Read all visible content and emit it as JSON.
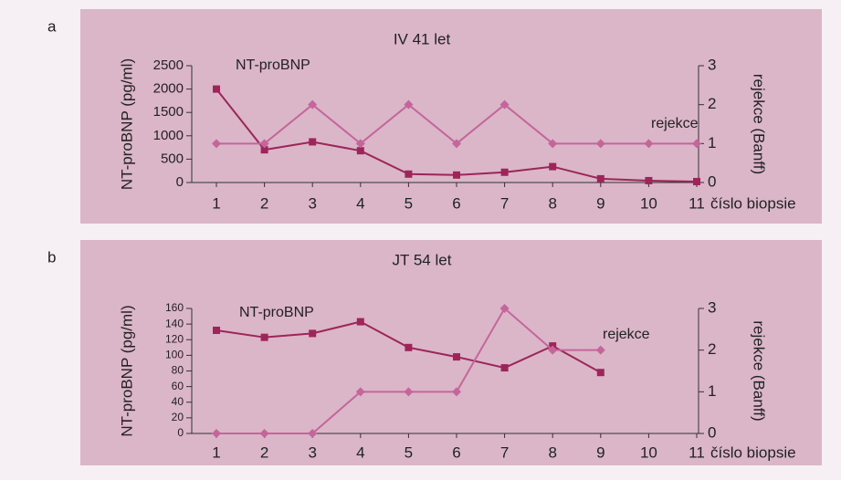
{
  "chart_data": [
    {
      "type": "line",
      "panel": "a",
      "title": "IV 41 let",
      "ylabel": "NT-proBNP (pg/ml)",
      "y2label": "rejekce (Banff)",
      "xlabel": "číslo biopsie",
      "categories": [
        "1",
        "2",
        "3",
        "4",
        "5",
        "6",
        "7",
        "8",
        "9",
        "10",
        "11"
      ],
      "series": [
        {
          "name": "NT-proBNP",
          "color": "#9c2559",
          "marker": "square",
          "values": [
            2000,
            700,
            870,
            680,
            180,
            160,
            220,
            340,
            80,
            40,
            20
          ]
        },
        {
          "name": "rejekce",
          "color": "#c4669a",
          "marker": "diamond",
          "axis": "y2",
          "values": [
            1,
            1,
            2,
            1,
            2,
            1,
            2,
            1,
            1,
            1,
            1
          ]
        }
      ],
      "ylim": [
        0,
        2500
      ],
      "yticks": [
        0,
        500,
        1000,
        1500,
        2000,
        2500
      ],
      "y2lim": [
        0,
        3
      ],
      "y2ticks": [
        0,
        1,
        2,
        3
      ]
    },
    {
      "type": "line",
      "panel": "b",
      "title": "JT 54 let",
      "ylabel": "NT-proBNP (pg/ml)",
      "y2label": "rejekce (Banff)",
      "xlabel": "číslo biopsie",
      "categories": [
        "1",
        "2",
        "3",
        "4",
        "5",
        "6",
        "7",
        "8",
        "9",
        "10",
        "11"
      ],
      "series": [
        {
          "name": "NT-proBNP",
          "color": "#9c2559",
          "marker": "square",
          "values": [
            132,
            123,
            128,
            143,
            110,
            98,
            84,
            112,
            78,
            null,
            null
          ]
        },
        {
          "name": "rejekce",
          "color": "#c4669a",
          "marker": "diamond",
          "axis": "y2",
          "values": [
            0,
            0,
            0,
            1,
            1,
            1,
            3,
            2,
            2,
            null,
            null
          ]
        }
      ],
      "ylim": [
        0,
        160
      ],
      "yticks": [
        0,
        20,
        40,
        60,
        80,
        100,
        120,
        140,
        160
      ],
      "y2lim": [
        0,
        3
      ],
      "y2ticks": [
        0,
        1,
        2,
        3
      ]
    }
  ]
}
